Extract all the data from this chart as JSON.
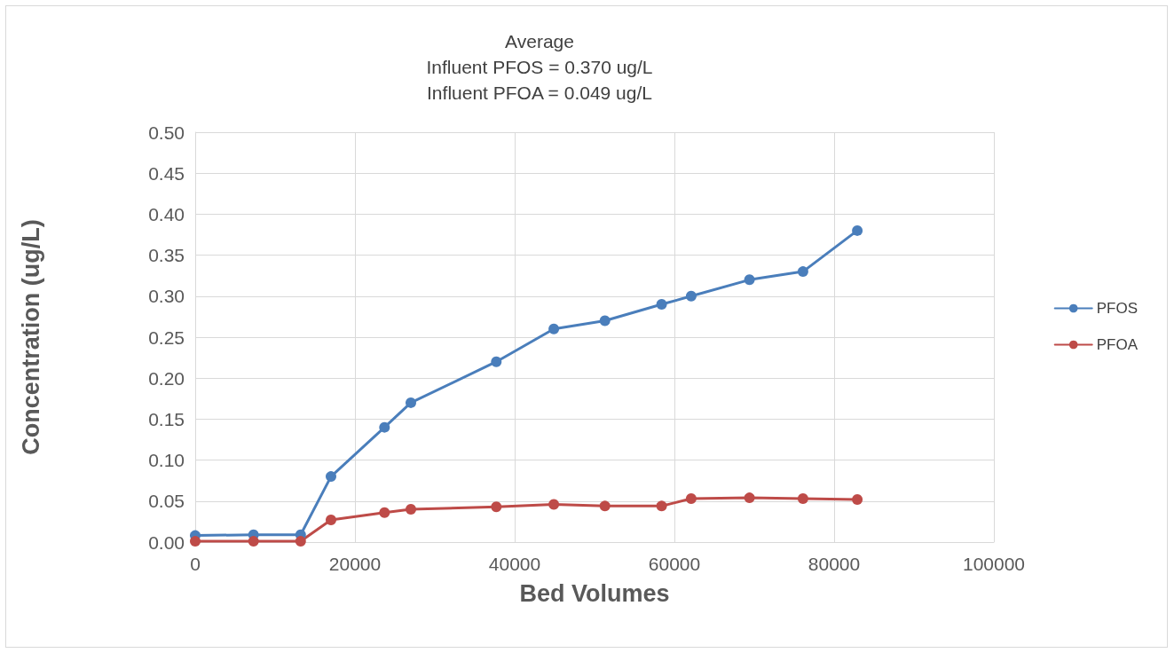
{
  "chart_data": {
    "type": "line",
    "title": "Average\nInfluent PFOS = 0.370 ug/L\nInfluent PFOA = 0.049 ug/L",
    "xlabel": "Bed Volumes",
    "ylabel": "Concentration (ug/L)",
    "x": [
      0,
      7300,
      13200,
      17000,
      23700,
      27000,
      37700,
      44900,
      51300,
      58400,
      62100,
      69400,
      76100,
      82900
    ],
    "series": [
      {
        "name": "PFOS",
        "color": "#4a7ebb",
        "values": [
          0.008,
          0.009,
          0.009,
          0.08,
          0.14,
          0.17,
          0.22,
          0.26,
          0.27,
          0.29,
          0.3,
          0.32,
          0.33,
          0.38
        ]
      },
      {
        "name": "PFOA",
        "color": "#be4b48",
        "values": [
          0.001,
          0.001,
          0.001,
          0.027,
          0.036,
          0.04,
          0.043,
          0.046,
          0.044,
          0.044,
          0.053,
          0.054,
          0.053,
          0.052
        ]
      }
    ],
    "xlim": [
      0,
      100000
    ],
    "xticks": [
      0,
      20000,
      40000,
      60000,
      80000,
      100000
    ],
    "ylim": [
      0,
      0.5
    ],
    "yticks": [
      {
        "value": 0,
        "label": "0.00"
      },
      {
        "value": 0.05,
        "label": "0.05"
      },
      {
        "value": 0.1,
        "label": "0.10"
      },
      {
        "value": 0.15,
        "label": "0.15"
      },
      {
        "value": 0.2,
        "label": "0.20"
      },
      {
        "value": 0.25,
        "label": "0.25"
      },
      {
        "value": 0.3,
        "label": "0.30"
      },
      {
        "value": 0.35,
        "label": "0.35"
      },
      {
        "value": 0.4,
        "label": "0.40"
      },
      {
        "value": 0.45,
        "label": "0.45"
      },
      {
        "value": 0.5,
        "label": "0.50"
      }
    ],
    "grid": true,
    "legend": "right",
    "marker": "circle",
    "line_style": "solid"
  }
}
